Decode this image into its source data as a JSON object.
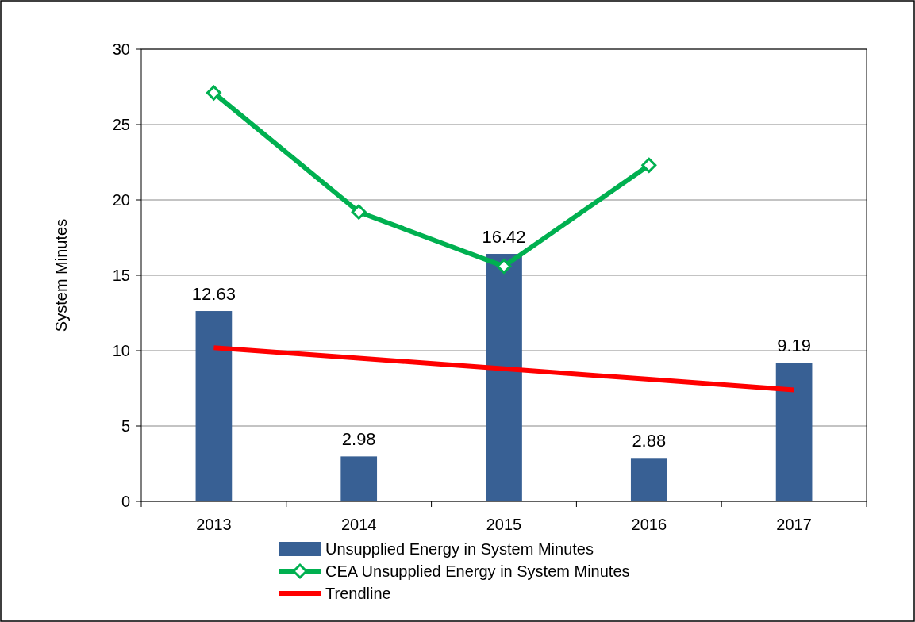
{
  "chart_data": {
    "type": "bar",
    "ylabel": "System Minutes",
    "categories": [
      "2013",
      "2014",
      "2015",
      "2016",
      "2017"
    ],
    "ylim": [
      0,
      30
    ],
    "yticks": [
      0,
      5,
      10,
      15,
      20,
      25,
      30
    ],
    "grid": "y",
    "legend": "bottom",
    "series": [
      {
        "name": "Unsupplied Energy in System Minutes",
        "color": "#386094",
        "values": [
          12.63,
          2.98,
          16.42,
          2.88,
          9.19
        ],
        "value_labels": [
          "12.63",
          "2.98",
          "16.42",
          "2.88",
          "9.19"
        ]
      },
      {
        "name": "CEA Unsupplied Energy in System Minutes",
        "type": "line",
        "color": "#00b050",
        "marker": "diamond",
        "values": [
          27.1,
          19.2,
          15.6,
          22.3,
          null
        ]
      },
      {
        "name": "Trendline",
        "type": "line",
        "color": "#ff0000",
        "marker": "none",
        "values": [
          10.2,
          9.5,
          8.8,
          8.1,
          7.4
        ]
      }
    ]
  }
}
